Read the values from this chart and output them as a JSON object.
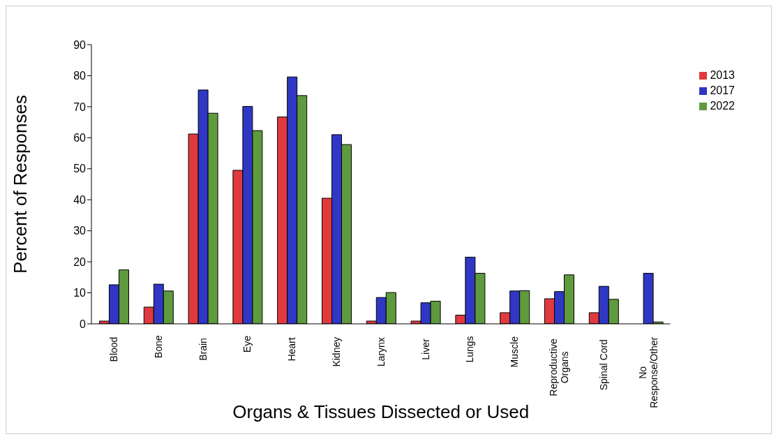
{
  "chart_data": {
    "type": "bar",
    "xlabel": "Organs & Tissues Dissected or Used",
    "ylabel": "Percent of Responses",
    "categories": [
      "Blood",
      "Bone",
      "Brain",
      "Eye",
      "Heart",
      "Kidney",
      "Larynx",
      "Liver",
      "Lungs",
      "Muscle",
      "Reproductive Organs",
      "Spinal Cord",
      "No Response/Other"
    ],
    "series": [
      {
        "name": "2013",
        "color": "#e03a3e",
        "values": [
          0.9,
          5.4,
          61.2,
          49.5,
          66.7,
          40.5,
          0.9,
          0.9,
          2.8,
          3.6,
          8.1,
          3.6,
          null
        ]
      },
      {
        "name": "2017",
        "color": "#2f37c4",
        "values": [
          12.6,
          12.8,
          75.4,
          70.1,
          79.6,
          61.0,
          8.5,
          6.8,
          21.5,
          10.6,
          10.4,
          12.1,
          16.3
        ]
      },
      {
        "name": "2022",
        "color": "#5f9a3e",
        "values": [
          17.4,
          10.6,
          67.9,
          62.3,
          73.6,
          57.8,
          10.1,
          7.3,
          16.3,
          10.7,
          15.8,
          7.9,
          0.6
        ]
      }
    ],
    "ylim": [
      0,
      90
    ],
    "yticks": [
      0,
      10,
      20,
      30,
      40,
      50,
      60,
      70,
      80,
      90
    ],
    "grid": false,
    "legend": "top right"
  }
}
